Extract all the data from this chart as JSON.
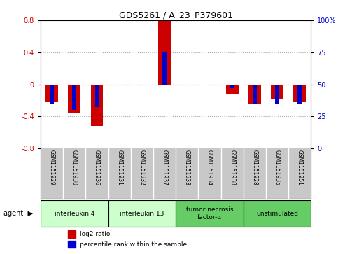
{
  "title": "GDS5261 / A_23_P379601",
  "samples": [
    "GSM1151929",
    "GSM1151930",
    "GSM1151936",
    "GSM1151931",
    "GSM1151932",
    "GSM1151937",
    "GSM1151933",
    "GSM1151934",
    "GSM1151938",
    "GSM1151928",
    "GSM1151935",
    "GSM1151951"
  ],
  "log2_ratio": [
    -0.22,
    -0.35,
    -0.52,
    0.0,
    0.0,
    0.79,
    0.0,
    0.0,
    -0.12,
    -0.25,
    -0.18,
    -0.22
  ],
  "percentile": [
    35,
    30,
    32,
    50,
    50,
    75,
    50,
    50,
    47,
    35,
    35,
    35
  ],
  "groups": [
    {
      "label": "interleukin 4",
      "start": 0,
      "end": 3,
      "color": "#ccffcc"
    },
    {
      "label": "interleukin 13",
      "start": 3,
      "end": 6,
      "color": "#ccffcc"
    },
    {
      "label": "tumor necrosis\nfactor-α",
      "start": 6,
      "end": 9,
      "color": "#66cc66"
    },
    {
      "label": "unstimulated",
      "start": 9,
      "end": 12,
      "color": "#66cc66"
    }
  ],
  "ylim": [
    -0.8,
    0.8
  ],
  "yticks_left": [
    -0.8,
    -0.4,
    0.0,
    0.4,
    0.8
  ],
  "bar_width": 0.55,
  "blue_bar_width": 0.18,
  "red_color": "#cc0000",
  "blue_color": "#0000cc",
  "bg_color": "#ffffff",
  "label_bg": "#c8c8c8",
  "grid_color": "#aaaaaa",
  "legend_red": "log2 ratio",
  "legend_blue": "percentile rank within the sample"
}
